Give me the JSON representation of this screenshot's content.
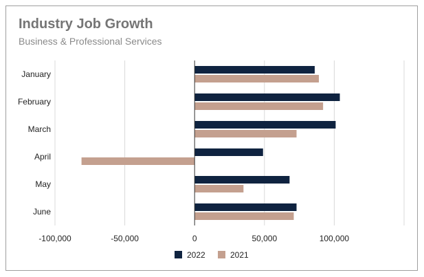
{
  "chart_data": {
    "type": "bar",
    "orientation": "horizontal",
    "title": "Industry Job Growth",
    "subtitle": "Business & Professional Services",
    "categories": [
      "January",
      "February",
      "March",
      "April",
      "May",
      "June"
    ],
    "series": [
      {
        "name": "2022",
        "color": "#0f2340",
        "values": [
          86000,
          104000,
          101000,
          49000,
          68000,
          73000
        ]
      },
      {
        "name": "2021",
        "color": "#c4a08f",
        "values": [
          89000,
          92000,
          73000,
          -81000,
          35000,
          71000
        ]
      }
    ],
    "xlim": [
      -100000,
      150000
    ],
    "xticks": [
      -100000,
      -50000,
      0,
      50000,
      100000
    ],
    "xtick_labels": [
      "-100,000",
      "-50,000",
      "0",
      "50,000",
      "100,000"
    ],
    "grid": true,
    "legend_position": "bottom"
  }
}
